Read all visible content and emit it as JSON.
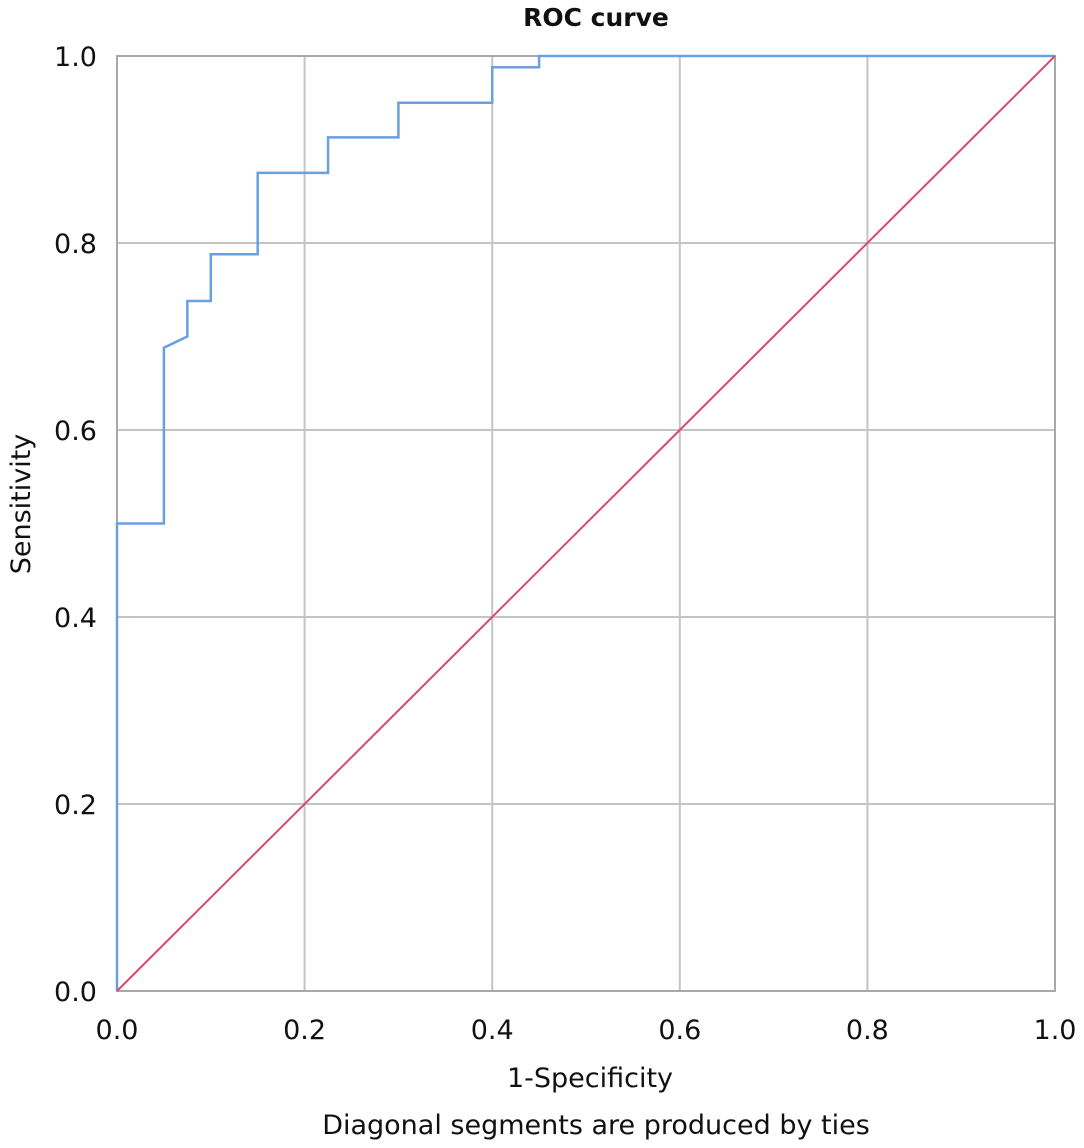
{
  "chart_data": {
    "type": "line",
    "title": "ROC curve",
    "xlabel": "1-Specificity",
    "ylabel": "Sensitivity",
    "footnote": "Diagonal segments are produced by ties",
    "xlim": [
      0,
      1
    ],
    "ylim": [
      0,
      1
    ],
    "x_ticks": [
      0.0,
      0.2,
      0.4,
      0.6,
      0.8,
      1.0
    ],
    "y_ticks": [
      0.0,
      0.2,
      0.4,
      0.6,
      0.8,
      1.0
    ],
    "x_tick_labels": [
      "0.0",
      "0.2",
      "0.4",
      "0.6",
      "0.8",
      "1.0"
    ],
    "y_tick_labels": [
      "0.0",
      "0.2",
      "0.4",
      "0.6",
      "0.8",
      "1.0"
    ],
    "grid": true,
    "series": [
      {
        "color": "#6a9fe0",
        "x": [
          0.0,
          0.0,
          0.05,
          0.05,
          0.075,
          0.075,
          0.1,
          0.1,
          0.15,
          0.15,
          0.225,
          0.225,
          0.3,
          0.3,
          0.4,
          0.4,
          0.45,
          0.45,
          1.0
        ],
        "y": [
          0.0,
          0.5,
          0.5,
          0.688,
          0.7,
          0.738,
          0.738,
          0.788,
          0.788,
          0.875,
          0.875,
          0.913,
          0.913,
          0.95,
          0.95,
          0.988,
          0.988,
          1.0,
          1.0
        ]
      },
      {
        "color": "#d94a6a",
        "x": [
          0.0,
          1.0
        ],
        "y": [
          0.0,
          1.0
        ]
      }
    ]
  }
}
